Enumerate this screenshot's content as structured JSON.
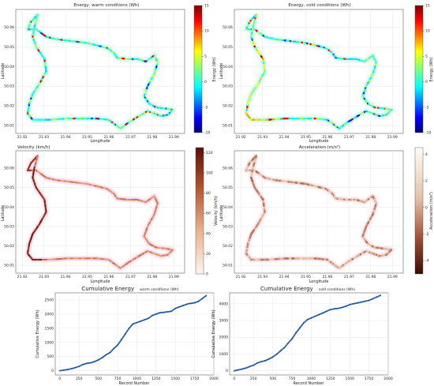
{
  "chart_data": [
    {
      "type": "scatter",
      "title": "Energy, warm conditions (Wh)",
      "xlabel": "Longitude",
      "ylabel": "Latitude",
      "colorbar_label": "Energy (Wh)",
      "colormap": "jet",
      "xticks": [
        "21.92",
        "21.93",
        "21.94",
        "21.95",
        "21.96",
        "21.97",
        "21.98",
        "21.99"
      ],
      "yticks": [
        "50.01",
        "50.02",
        "50.03",
        "50.04",
        "50.05",
        "50.06"
      ],
      "colorbar_ticks": [
        "15",
        "10",
        "5",
        "0",
        "-5",
        "-10"
      ],
      "xlim": [
        21.917,
        21.995
      ],
      "ylim": [
        50.006,
        50.069
      ],
      "clim": [
        -10,
        15
      ],
      "grid": true
    },
    {
      "type": "scatter",
      "title": "Energy, cold conditions (Wh)",
      "xlabel": "Longitude",
      "ylabel": "Latitude",
      "colorbar_label": "Energy (Wh)",
      "colormap": "jet",
      "xticks": [
        "21.92",
        "21.93",
        "21.94",
        "21.95",
        "21.96",
        "21.97",
        "21.98",
        "21.99"
      ],
      "yticks": [
        "50.01",
        "50.02",
        "50.03",
        "50.04",
        "50.05",
        "50.06"
      ],
      "colorbar_ticks": [
        "15",
        "10",
        "5",
        "0",
        "-5",
        "-10"
      ],
      "xlim": [
        21.917,
        21.995
      ],
      "ylim": [
        50.006,
        50.069
      ],
      "clim": [
        -10,
        15
      ],
      "grid": true
    },
    {
      "type": "scatter",
      "title": "Velocity (km/h)",
      "xlabel": "Longitude",
      "ylabel": "Latitude",
      "colorbar_label": "Velocity (km/h)",
      "colormap": "white-to-dark-red",
      "xticks": [
        "21.92",
        "21.93",
        "21.94",
        "21.95",
        "21.96",
        "21.97",
        "21.98",
        "21.99"
      ],
      "yticks": [
        "50.01",
        "50.02",
        "50.03",
        "50.04",
        "50.05",
        "50.06"
      ],
      "colorbar_ticks": [
        "120",
        "100",
        "80",
        "60",
        "40",
        "20",
        "0"
      ],
      "xlim": [
        21.917,
        21.995
      ],
      "ylim": [
        50.006,
        50.069
      ],
      "clim": [
        0,
        125
      ],
      "grid": true
    },
    {
      "type": "scatter",
      "title": "Acceleration (m/s²)",
      "xlabel": "Longitude",
      "ylabel": "Latitude",
      "colorbar_label": "Acceleration (m/s²)",
      "colormap": "dark-red-to-white",
      "xticks": [
        "21.92",
        "21.93",
        "21.94",
        "21.95",
        "21.96",
        "21.97",
        "21.98",
        "21.99"
      ],
      "yticks": [
        "50.01",
        "50.02",
        "50.03",
        "50.04",
        "50.05",
        "50.06"
      ],
      "colorbar_ticks": [
        "4",
        "2",
        "0",
        "-2",
        "-4"
      ],
      "xlim": [
        21.917,
        21.995
      ],
      "ylim": [
        50.006,
        50.069
      ],
      "clim": [
        -5,
        4.5
      ],
      "grid": true
    },
    {
      "type": "line",
      "title": "Cumulative Energy",
      "title_note": "warm conditions (Wh)",
      "xlabel": "Record Number",
      "ylabel": "Cumulative Energy (Wh)",
      "xticks": [
        "0",
        "250",
        "500",
        "750",
        "1000",
        "1250",
        "1500",
        "1750",
        "2000"
      ],
      "yticks": [
        "0",
        "500",
        "1000",
        "1500",
        "2000",
        "2500"
      ],
      "xlim": [
        -60,
        2000
      ],
      "ylim": [
        -150,
        2750
      ],
      "grid": true,
      "x": [
        0,
        50,
        100,
        150,
        200,
        250,
        300,
        350,
        400,
        450,
        500,
        550,
        600,
        650,
        700,
        750,
        800,
        850,
        900,
        950,
        1000,
        1050,
        1100,
        1150,
        1200,
        1250,
        1300,
        1350,
        1400,
        1450,
        1500,
        1550,
        1600,
        1650,
        1700,
        1750,
        1800,
        1850,
        1900
      ],
      "y": [
        0,
        20,
        40,
        70,
        110,
        150,
        220,
        260,
        280,
        320,
        380,
        460,
        560,
        640,
        780,
        900,
        1100,
        1300,
        1500,
        1650,
        1700,
        1750,
        1800,
        1850,
        1950,
        2000,
        2050,
        2060,
        2080,
        2100,
        2200,
        2250,
        2300,
        2350,
        2380,
        2400,
        2450,
        2550,
        2650
      ]
    },
    {
      "type": "line",
      "title": "Cumulative Energy",
      "title_note": "cold conditions (Wh)",
      "xlabel": "Record Number",
      "ylabel": "Cumulative Energy (Wh)",
      "xticks": [
        "0",
        "250",
        "500",
        "750",
        "1000",
        "1250",
        "1500",
        "1750",
        "2000"
      ],
      "yticks": [
        "0",
        "1000",
        "2000",
        "3000",
        "4000"
      ],
      "xlim": [
        -60,
        2000
      ],
      "ylim": [
        -250,
        4650
      ],
      "grid": true,
      "x": [
        0,
        50,
        100,
        150,
        200,
        250,
        300,
        350,
        400,
        450,
        500,
        550,
        600,
        650,
        700,
        750,
        800,
        850,
        900,
        950,
        1000,
        1050,
        1100,
        1150,
        1200,
        1250,
        1300,
        1350,
        1400,
        1450,
        1500,
        1550,
        1600,
        1650,
        1700,
        1750,
        1800,
        1850,
        1900
      ],
      "y": [
        0,
        50,
        100,
        160,
        250,
        330,
        460,
        540,
        600,
        700,
        820,
        980,
        1180,
        1380,
        1650,
        1900,
        2250,
        2550,
        2850,
        3050,
        3150,
        3250,
        3350,
        3450,
        3550,
        3650,
        3700,
        3720,
        3780,
        3850,
        3950,
        4000,
        4050,
        4100,
        4150,
        4200,
        4300,
        4400,
        4500
      ]
    }
  ]
}
